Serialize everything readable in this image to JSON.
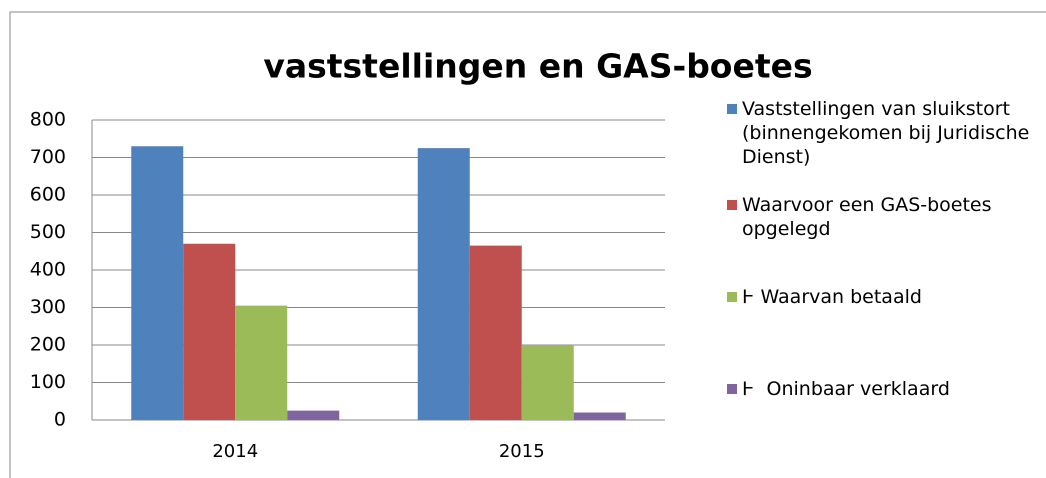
{
  "chart_data": {
    "type": "bar",
    "title": "vaststellingen en GAS-boetes",
    "categories": [
      "2014",
      "2015"
    ],
    "series": [
      {
        "name": "Vaststellingen van sluikstort (binnengekomen bij Juridische Dienst)",
        "color": "#4f81bd",
        "values": [
          730,
          725
        ]
      },
      {
        "name": "Waarvoor een GAS-boetes opgelegd",
        "color": "#c0504d",
        "values": [
          470,
          465
        ]
      },
      {
        "name": "Ͱ Waarvan betaald",
        "color": "#9bbb59",
        "values": [
          305,
          200
        ]
      },
      {
        "name": "Ͱ  Oninbaar verklaard",
        "color": "#8064a2",
        "values": [
          25,
          20
        ]
      }
    ],
    "ylim": [
      0,
      800
    ],
    "yticks": [
      0,
      100,
      200,
      300,
      400,
      500,
      600,
      700,
      800
    ],
    "grid": true,
    "legend": "right"
  }
}
